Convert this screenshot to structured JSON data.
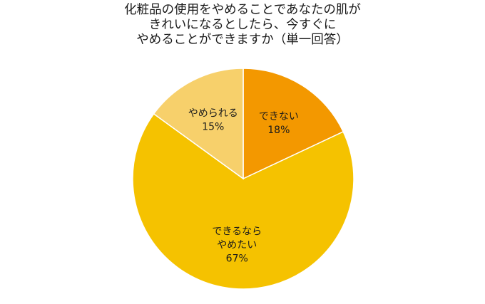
{
  "chart_data": {
    "type": "pie",
    "title_lines": [
      "化粧品の使用をやめることであなたの肌が",
      "きれいになるとしたら、今すぐに",
      "やめることができますか（単一回答）"
    ],
    "unit": "%",
    "slices": [
      {
        "label_lines": [
          "できない"
        ],
        "value": 18,
        "color": "#F39800"
      },
      {
        "label_lines": [
          "できるなら",
          "やめたい"
        ],
        "value": 67,
        "color": "#F5C200"
      },
      {
        "label_lines": [
          "やめられる"
        ],
        "value": 15,
        "color": "#F7D06B"
      }
    ]
  }
}
